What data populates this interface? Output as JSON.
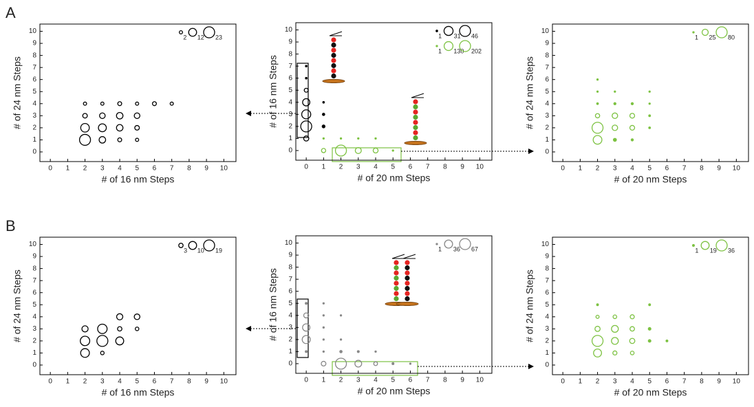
{
  "panel_labels": [
    "A",
    "B"
  ],
  "chart_data": [
    {
      "type": "scatter",
      "xlabel": "# of 16 nm Steps",
      "ylabel": "# of 24 nm Steps",
      "xlim": [
        -0.6,
        10.7
      ],
      "ylim": [
        -0.8,
        10.6
      ],
      "xticks": [
        0,
        1,
        2,
        3,
        4,
        5,
        6,
        7,
        8,
        9,
        10
      ],
      "yticks": [
        0,
        1,
        2,
        3,
        4,
        5,
        6,
        7,
        8,
        9,
        10
      ],
      "series": [
        {
          "color": "#000000",
          "x": [
            2,
            3,
            4,
            5,
            6,
            7,
            2,
            3,
            4,
            5,
            2,
            3,
            4,
            5,
            2,
            3,
            4,
            5
          ],
          "values": [
            4,
            4,
            4,
            4,
            4,
            4,
            3,
            3,
            3,
            3,
            2,
            2,
            2,
            2,
            1,
            1,
            1,
            1
          ],
          "sizes": [
            2,
            2,
            3,
            2,
            3,
            2,
            4,
            6,
            8,
            6,
            14,
            12,
            8,
            4,
            23,
            8,
            3,
            2
          ],
          "size_legend": [
            2,
            12,
            23
          ]
        }
      ]
    },
    {
      "type": "scatter",
      "xlabel": "# of 20 nm Steps",
      "ylabel": "# of 16 nm Steps",
      "xlim": [
        -0.6,
        10.7
      ],
      "ylim": [
        -0.8,
        10.6
      ],
      "xticks": [
        0,
        1,
        2,
        3,
        4,
        5,
        6,
        7,
        8,
        9,
        10
      ],
      "yticks": [
        0,
        1,
        2,
        3,
        4,
        5,
        6,
        7,
        8,
        9,
        10
      ],
      "series": [
        {
          "color": "#000000",
          "x": [
            0,
            0,
            0,
            0,
            0,
            0,
            0,
            1,
            1,
            1
          ],
          "values": [
            7,
            6,
            5,
            4,
            3,
            2,
            1,
            4,
            3,
            2
          ],
          "sizes": [
            1,
            1,
            6,
            20,
            31,
            46,
            10,
            1,
            2,
            3
          ],
          "size_legend": [
            1,
            31,
            46
          ]
        },
        {
          "color": "#7dc242",
          "x": [
            1,
            2,
            3,
            4,
            1,
            2,
            3,
            4,
            5
          ],
          "values": [
            1,
            1,
            1,
            1,
            0,
            0,
            0,
            0,
            0
          ],
          "sizes": [
            1,
            1,
            1,
            1,
            30,
            202,
            60,
            40,
            3
          ],
          "size_legend": [
            1,
            130,
            202
          ]
        }
      ]
    },
    {
      "type": "scatter",
      "xlabel": "# of 20 nm Steps",
      "ylabel": "# of 24 nm Steps",
      "xlim": [
        -0.6,
        10.7
      ],
      "ylim": [
        -0.8,
        10.6
      ],
      "xticks": [
        0,
        1,
        2,
        3,
        4,
        5,
        6,
        7,
        8,
        9,
        10
      ],
      "yticks": [
        0,
        1,
        2,
        3,
        4,
        5,
        6,
        7,
        8,
        9,
        10
      ],
      "series": [
        {
          "color": "#7dc242",
          "x": [
            2,
            2,
            3,
            5,
            2,
            3,
            4,
            5,
            2,
            3,
            4,
            5,
            2,
            3,
            4,
            5,
            2,
            3,
            4
          ],
          "values": [
            6,
            5,
            5,
            5,
            4,
            4,
            4,
            4,
            3,
            3,
            3,
            3,
            2,
            2,
            2,
            2,
            1,
            1,
            1
          ],
          "sizes": [
            1,
            1,
            1,
            1,
            2,
            3,
            3,
            1,
            12,
            20,
            15,
            2,
            80,
            20,
            15,
            2,
            50,
            6,
            3
          ],
          "size_legend": [
            1,
            25,
            80
          ]
        }
      ]
    },
    {
      "type": "scatter",
      "xlabel": "# of 16 nm Steps",
      "ylabel": "# of 24 nm Steps",
      "xlim": [
        -0.6,
        10.7
      ],
      "ylim": [
        -0.8,
        10.6
      ],
      "xticks": [
        0,
        1,
        2,
        3,
        4,
        5,
        6,
        7,
        8,
        9,
        10
      ],
      "yticks": [
        0,
        1,
        2,
        3,
        4,
        5,
        6,
        7,
        8,
        9,
        10
      ],
      "series": [
        {
          "color": "#000000",
          "x": [
            4,
            5,
            2,
            3,
            4,
            5,
            2,
            3,
            4,
            2,
            3
          ],
          "values": [
            4,
            4,
            3,
            3,
            3,
            3,
            2,
            2,
            2,
            1,
            1
          ],
          "sizes": [
            6,
            5,
            6,
            14,
            3,
            2,
            14,
            19,
            10,
            12,
            2
          ],
          "size_legend": [
            3,
            10,
            19
          ]
        }
      ]
    },
    {
      "type": "scatter",
      "xlabel": "# of 20 nm Steps",
      "ylabel": "# of 16 nm Steps",
      "xlim": [
        -0.6,
        10.7
      ],
      "ylim": [
        -0.8,
        10.6
      ],
      "xticks": [
        0,
        1,
        2,
        3,
        4,
        5,
        6,
        7,
        8,
        9,
        10
      ],
      "yticks": [
        0,
        1,
        2,
        3,
        4,
        5,
        6,
        7,
        8,
        9,
        10
      ],
      "series": [
        {
          "color": "#888888",
          "x": [
            0,
            0,
            0,
            0,
            0,
            1,
            1,
            1,
            1,
            1,
            2,
            2,
            2,
            3,
            4,
            1,
            2,
            3,
            4,
            5,
            6
          ],
          "values": [
            5,
            4,
            3,
            2,
            1,
            5,
            4,
            3,
            2,
            1,
            4,
            2,
            1,
            1,
            1,
            0,
            0,
            0,
            0,
            0,
            0
          ],
          "sizes": [
            2,
            14,
            30,
            36,
            2,
            1,
            1,
            1,
            1,
            1,
            1,
            1,
            3,
            2,
            1,
            12,
            67,
            25,
            8,
            2,
            1
          ],
          "size_legend": [
            1,
            36,
            67
          ]
        }
      ]
    },
    {
      "type": "scatter",
      "xlabel": "# of 20 nm Steps",
      "ylabel": "# of 24 nm Steps",
      "xlim": [
        -0.6,
        10.7
      ],
      "ylim": [
        -0.8,
        10.6
      ],
      "xticks": [
        0,
        1,
        2,
        3,
        4,
        5,
        6,
        7,
        8,
        9,
        10
      ],
      "yticks": [
        0,
        1,
        2,
        3,
        4,
        5,
        6,
        7,
        8,
        9,
        10
      ],
      "series": [
        {
          "color": "#7dc242",
          "x": [
            2,
            5,
            2,
            3,
            4,
            2,
            3,
            4,
            5,
            2,
            3,
            4,
            5,
            6,
            2,
            3,
            4
          ],
          "values": [
            5,
            5,
            4,
            4,
            4,
            3,
            3,
            3,
            3,
            2,
            2,
            2,
            2,
            2,
            1,
            1,
            1
          ],
          "sizes": [
            1,
            1,
            3,
            4,
            5,
            8,
            14,
            6,
            2,
            36,
            14,
            8,
            2,
            1,
            19,
            5,
            4
          ],
          "size_legend": [
            1,
            19,
            36
          ]
        }
      ]
    }
  ]
}
